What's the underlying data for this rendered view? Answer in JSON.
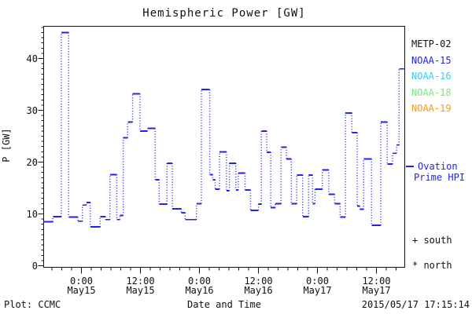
{
  "title": "Hemispheric Power [GW]",
  "axes": {
    "ylabel": "P [GW]",
    "xlabel": "Date and Time",
    "y_ticks": [
      "0",
      "10",
      "20",
      "30",
      "40"
    ],
    "y_tick_values": [
      0,
      10,
      20,
      30,
      40
    ],
    "y_minor_step_gw": 1,
    "y_range_gw": [
      0,
      46.2
    ],
    "x_major_labels": [
      {
        "time": "0:00",
        "date": "May15"
      },
      {
        "time": "12:00",
        "date": "May15"
      },
      {
        "time": "0:00",
        "date": "May16"
      },
      {
        "time": "12:00",
        "date": "May16"
      },
      {
        "time": "0:00",
        "date": "May17"
      },
      {
        "time": "12:00",
        "date": "May17"
      }
    ],
    "x_major_hours": [
      0,
      12,
      24,
      36,
      48,
      60
    ],
    "x_minor_step_hours": 2,
    "x_range_hours": [
      -7.7,
      65.9
    ]
  },
  "legend": {
    "satellites": [
      {
        "label": "METP-02",
        "color": "#111111"
      },
      {
        "label": "NOAA-15",
        "color": "#2222ee"
      },
      {
        "label": "NOAA-16",
        "color": "#33ccff"
      },
      {
        "label": "NOAA-18",
        "color": "#77e877"
      },
      {
        "label": "NOAA-19",
        "color": "#ff9911"
      }
    ],
    "series_line1": "Ovation",
    "series_line2": "Prime HPI",
    "series_color": "#2222ee",
    "south_label": "+ south",
    "north_label": "* north"
  },
  "footer": {
    "left": "Plot: CCMC",
    "right": "2015/05/17 17:15:14"
  },
  "chart_data": {
    "type": "line",
    "subtype": "step-post",
    "series_name": "Ovation Prime HPI",
    "line_color": "#2222ee",
    "line_style": "dotted-vertical-solid-horizontal",
    "title": "Hemispheric Power [GW]",
    "xlabel": "Date and Time",
    "ylabel": "P [GW]",
    "ylim": [
      0,
      46.2
    ],
    "xlim_hours": [
      -7.7,
      65.9
    ],
    "x_unit": "hours since 2015-05-15 00:00 UT",
    "step_start_hours": [
      -7.7,
      -5.8,
      -4.1,
      -2.6,
      -0.7,
      0.2,
      1.0,
      1.8,
      3.8,
      4.9,
      5.8,
      7.2,
      7.8,
      8.5,
      9.4,
      10.4,
      11.9,
      13.4,
      15.0,
      15.8,
      17.4,
      18.5,
      20.3,
      21.1,
      23.4,
      24.4,
      26.1,
      26.7,
      27.2,
      28.1,
      29.5,
      30.1,
      31.4,
      31.9,
      33.3,
      34.4,
      36.0,
      36.6,
      37.7,
      38.5,
      39.4,
      40.6,
      41.7,
      42.7,
      43.8,
      45.0,
      46.2,
      47.0,
      47.5,
      49.0,
      50.3,
      51.5,
      52.6,
      53.7,
      55.0,
      56.1,
      56.6,
      57.4,
      59.0,
      60.9,
      62.2,
      63.3,
      64.1,
      64.6
    ],
    "values_gw": [
      8.5,
      9.5,
      45.0,
      9.4,
      8.6,
      11.7,
      12.2,
      7.5,
      9.5,
      8.9,
      17.6,
      8.9,
      9.7,
      24.7,
      27.7,
      33.2,
      26.0,
      26.5,
      16.6,
      11.9,
      19.8,
      11.0,
      10.2,
      8.9,
      12.0,
      34.0,
      17.6,
      16.6,
      14.8,
      22.0,
      14.5,
      19.8,
      14.6,
      17.9,
      14.6,
      10.7,
      11.9,
      26.0,
      21.9,
      11.2,
      12.0,
      22.9,
      20.6,
      12.0,
      17.5,
      9.5,
      17.5,
      12.0,
      14.8,
      18.5,
      13.8,
      12.0,
      9.4,
      29.5,
      25.7,
      11.5,
      10.9,
      20.6,
      7.8,
      27.7,
      19.6,
      21.7,
      23.3,
      38.0
    ],
    "end_hour": 65.8
  }
}
